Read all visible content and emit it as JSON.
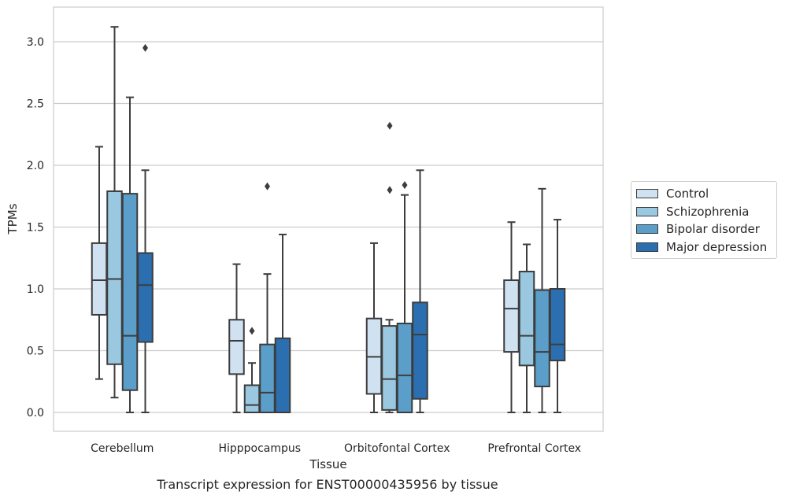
{
  "caption": "Transcript expression for ENST00000435956 by tissue",
  "chart_data": {
    "type": "box",
    "title": "",
    "xlabel": "Tissue",
    "ylabel": "TPMs",
    "ylim": [
      -0.15,
      3.27
    ],
    "yticks": [
      "0.0",
      "0.5",
      "1.0",
      "1.5",
      "2.0",
      "2.5",
      "3.0"
    ],
    "grid": "horizontal",
    "legend_position": "right",
    "categories": [
      "Cerebellum",
      "Hipppocampus",
      "Orbitofontal Cortex",
      "Prefrontal Cortex"
    ],
    "series": [
      {
        "name": "Control",
        "color": "#d0e2f2",
        "boxes": [
          {
            "whisker_low": 0.27,
            "q1": 0.79,
            "median": 1.07,
            "q3": 1.37,
            "whisker_high": 2.15,
            "outliers": []
          },
          {
            "whisker_low": 0.0,
            "q1": 0.31,
            "median": 0.58,
            "q3": 0.75,
            "whisker_high": 1.2,
            "outliers": []
          },
          {
            "whisker_low": 0.0,
            "q1": 0.15,
            "median": 0.45,
            "q3": 0.76,
            "whisker_high": 1.37,
            "outliers": []
          },
          {
            "whisker_low": 0.0,
            "q1": 0.49,
            "median": 0.84,
            "q3": 1.07,
            "whisker_high": 1.54,
            "outliers": []
          }
        ]
      },
      {
        "name": "Schizophrenia",
        "color": "#9ac8e0",
        "boxes": [
          {
            "whisker_low": 0.12,
            "q1": 0.39,
            "median": 1.08,
            "q3": 1.79,
            "whisker_high": 3.12,
            "outliers": []
          },
          {
            "whisker_low": 0.0,
            "q1": 0.0,
            "median": 0.06,
            "q3": 0.22,
            "whisker_high": 0.4,
            "outliers": [
              0.66
            ]
          },
          {
            "whisker_low": 0.0,
            "q1": 0.02,
            "median": 0.27,
            "q3": 0.7,
            "whisker_high": 0.75,
            "outliers": []
          },
          {
            "whisker_low": 0.0,
            "q1": 0.38,
            "median": 0.62,
            "q3": 1.14,
            "whisker_high": 1.36,
            "outliers": []
          }
        ]
      },
      {
        "name": "Bipolar disorder",
        "color": "#5a9ec9",
        "boxes": [
          {
            "whisker_low": 0.0,
            "q1": 0.18,
            "median": 0.62,
            "q3": 1.77,
            "whisker_high": 2.55,
            "outliers": []
          },
          {
            "whisker_low": 0.0,
            "q1": 0.0,
            "median": 0.16,
            "q3": 0.55,
            "whisker_high": 1.12,
            "outliers": [
              1.83
            ]
          },
          {
            "whisker_low": 0.0,
            "q1": 0.0,
            "median": 0.3,
            "q3": 0.72,
            "whisker_high": 1.76,
            "outliers": [
              1.84
            ]
          },
          {
            "whisker_low": 0.0,
            "q1": 0.21,
            "median": 0.49,
            "q3": 0.99,
            "whisker_high": 1.81,
            "outliers": []
          }
        ]
      },
      {
        "name": "Major depression",
        "color": "#2c6fb0",
        "boxes": [
          {
            "whisker_low": 0.0,
            "q1": 0.57,
            "median": 1.03,
            "q3": 1.29,
            "whisker_high": 1.96,
            "outliers": [
              2.95
            ]
          },
          {
            "whisker_low": 0.0,
            "q1": 0.0,
            "median": 0.0,
            "q3": 0.6,
            "whisker_high": 1.44,
            "outliers": []
          },
          {
            "whisker_low": 0.0,
            "q1": 0.11,
            "median": 0.63,
            "q3": 0.89,
            "whisker_high": 1.96,
            "outliers": []
          },
          {
            "whisker_low": 0.0,
            "q1": 0.42,
            "median": 0.55,
            "q3": 1.0,
            "whisker_high": 1.56,
            "outliers": []
          }
        ]
      }
    ],
    "extra_outliers": [
      {
        "category": "Orbitofontal Cortex",
        "series": "Control",
        "values": [
          2.32,
          1.8
        ]
      }
    ]
  }
}
